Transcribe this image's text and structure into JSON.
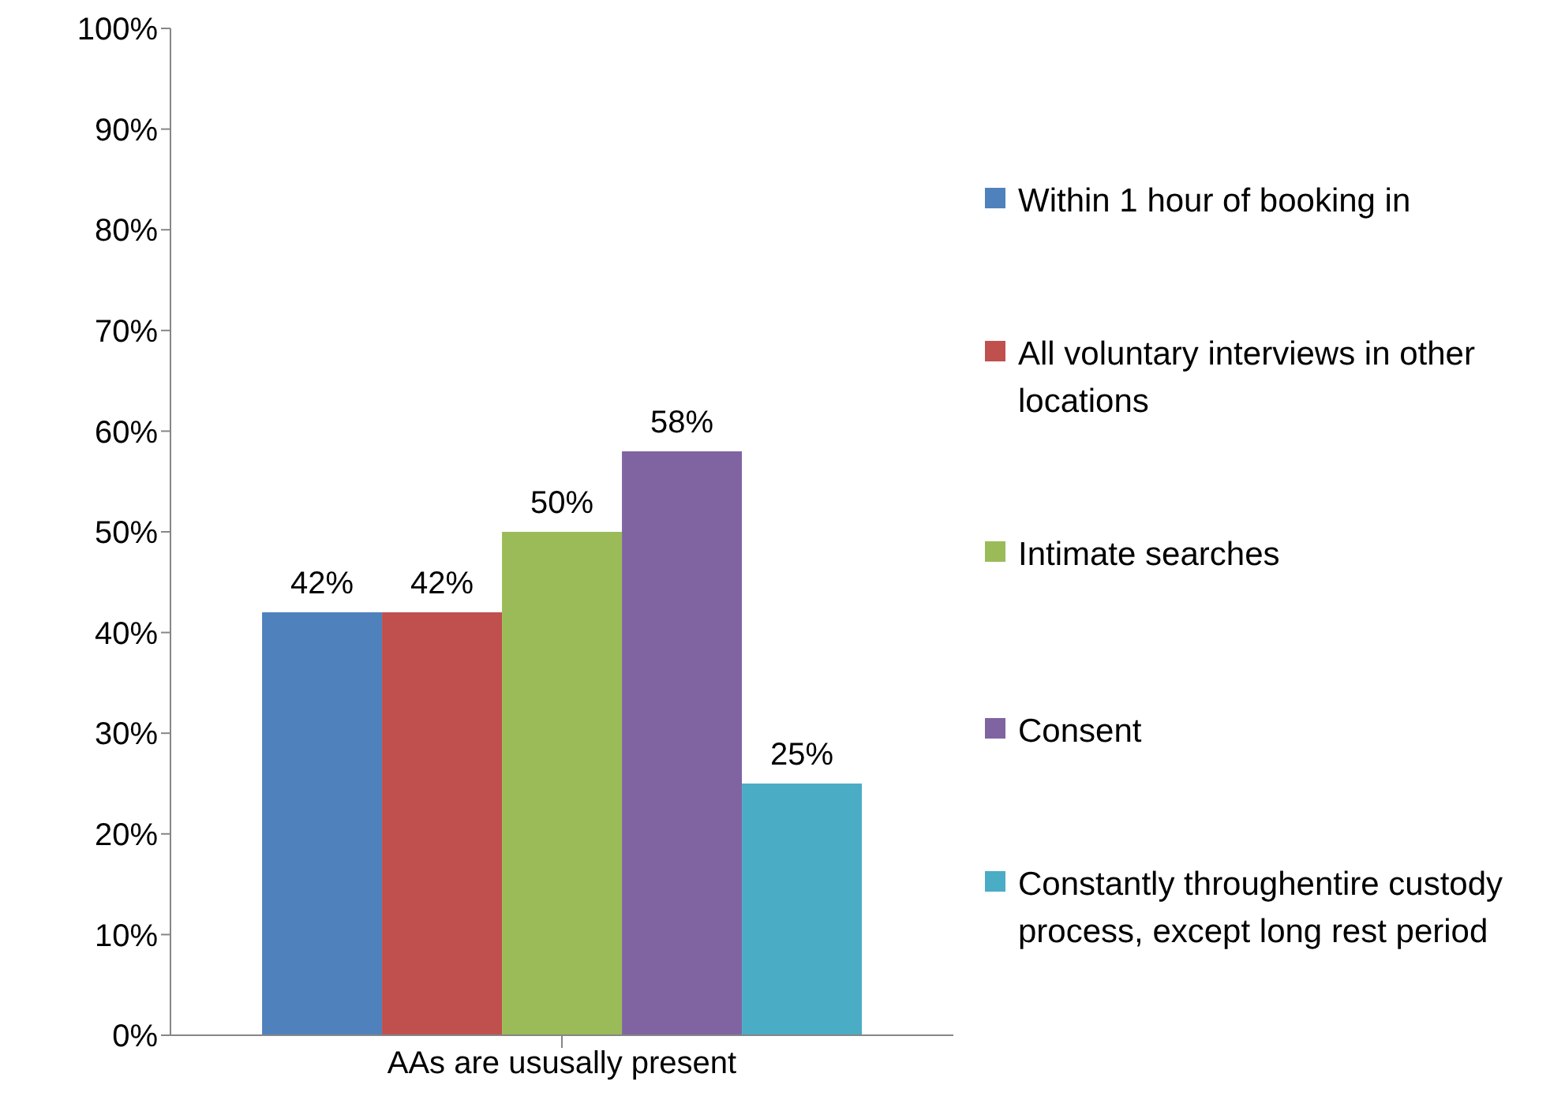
{
  "chart_data": {
    "type": "bar",
    "categories": [
      "AAs are ususally present"
    ],
    "series": [
      {
        "name": "Within 1 hour of booking in",
        "color": "#4f81bd",
        "values": [
          42
        ],
        "value_labels": [
          "42%"
        ]
      },
      {
        "name": "All voluntary interviews in other locations",
        "color": "#c0504d",
        "values": [
          42
        ],
        "value_labels": [
          "42%"
        ]
      },
      {
        "name": "Intimate searches",
        "color": "#9bbb59",
        "values": [
          50
        ],
        "value_labels": [
          "50%"
        ]
      },
      {
        "name": "Consent",
        "color": "#8064a2",
        "values": [
          58
        ],
        "value_labels": [
          "58%"
        ]
      },
      {
        "name": "Constantly throughentire custody process, except long rest period",
        "color": "#4bacc6",
        "values": [
          25
        ],
        "value_labels": [
          "25%"
        ]
      }
    ],
    "ylim": [
      0,
      100
    ],
    "yticks": [
      {
        "value": 0,
        "label": "0%"
      },
      {
        "value": 10,
        "label": "10%"
      },
      {
        "value": 20,
        "label": "20%"
      },
      {
        "value": 30,
        "label": "30%"
      },
      {
        "value": 40,
        "label": "40%"
      },
      {
        "value": 50,
        "label": "50%"
      },
      {
        "value": 60,
        "label": "60%"
      },
      {
        "value": 70,
        "label": "70%"
      },
      {
        "value": 80,
        "label": "80%"
      },
      {
        "value": 90,
        "label": "90%"
      },
      {
        "value": 100,
        "label": "100%"
      }
    ],
    "grid": false,
    "legend": "right"
  }
}
